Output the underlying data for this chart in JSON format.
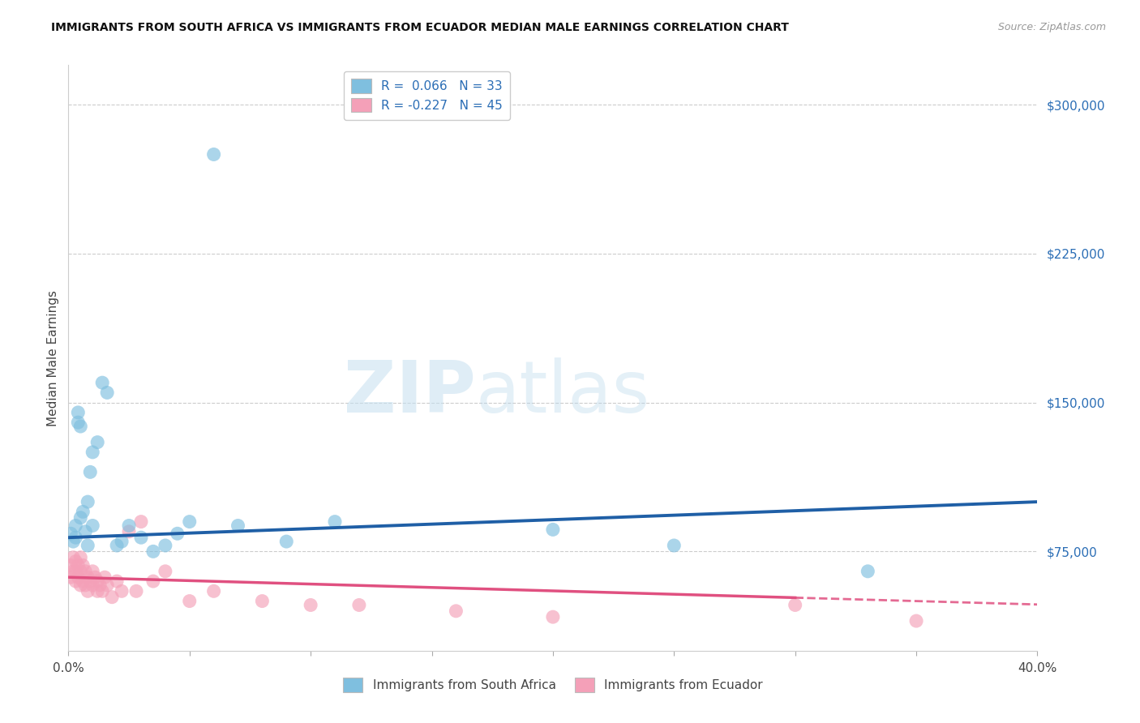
{
  "title": "IMMIGRANTS FROM SOUTH AFRICA VS IMMIGRANTS FROM ECUADOR MEDIAN MALE EARNINGS CORRELATION CHART",
  "source": "Source: ZipAtlas.com",
  "ylabel": "Median Male Earnings",
  "ytick_labels": [
    "$75,000",
    "$150,000",
    "$225,000",
    "$300,000"
  ],
  "ytick_values": [
    75000,
    150000,
    225000,
    300000
  ],
  "ylim": [
    25000,
    320000
  ],
  "xlim": [
    0.0,
    0.4
  ],
  "legend1_label": "R =  0.066   N = 33",
  "legend2_label": "R = -0.227   N = 45",
  "color_blue": "#7fbfdf",
  "color_pink": "#f4a0b8",
  "color_blue_line": "#1f5fa6",
  "color_pink_line": "#e05080",
  "watermark_zip": "ZIP",
  "watermark_atlas": "atlas",
  "south_africa_x": [
    0.001,
    0.002,
    0.003,
    0.003,
    0.004,
    0.004,
    0.005,
    0.005,
    0.006,
    0.007,
    0.008,
    0.008,
    0.009,
    0.01,
    0.01,
    0.012,
    0.014,
    0.016,
    0.02,
    0.022,
    0.025,
    0.03,
    0.035,
    0.04,
    0.045,
    0.05,
    0.06,
    0.07,
    0.09,
    0.11,
    0.2,
    0.25,
    0.33
  ],
  "south_africa_y": [
    84000,
    80000,
    88000,
    82000,
    140000,
    145000,
    138000,
    92000,
    95000,
    85000,
    100000,
    78000,
    115000,
    125000,
    88000,
    130000,
    160000,
    155000,
    78000,
    80000,
    88000,
    82000,
    75000,
    78000,
    84000,
    90000,
    275000,
    88000,
    80000,
    90000,
    86000,
    78000,
    65000
  ],
  "ecuador_x": [
    0.001,
    0.001,
    0.002,
    0.002,
    0.003,
    0.003,
    0.003,
    0.004,
    0.004,
    0.005,
    0.005,
    0.005,
    0.006,
    0.006,
    0.007,
    0.007,
    0.008,
    0.008,
    0.009,
    0.01,
    0.01,
    0.011,
    0.012,
    0.012,
    0.013,
    0.014,
    0.015,
    0.016,
    0.018,
    0.02,
    0.022,
    0.025,
    0.028,
    0.03,
    0.035,
    0.04,
    0.05,
    0.06,
    0.08,
    0.1,
    0.12,
    0.16,
    0.2,
    0.3,
    0.35
  ],
  "ecuador_y": [
    68000,
    62000,
    72000,
    65000,
    70000,
    65000,
    60000,
    68000,
    62000,
    72000,
    65000,
    58000,
    68000,
    60000,
    65000,
    58000,
    62000,
    55000,
    60000,
    65000,
    58000,
    62000,
    55000,
    60000,
    58000,
    55000,
    62000,
    58000,
    52000,
    60000,
    55000,
    85000,
    55000,
    90000,
    60000,
    65000,
    50000,
    55000,
    50000,
    48000,
    48000,
    45000,
    42000,
    48000,
    40000
  ]
}
